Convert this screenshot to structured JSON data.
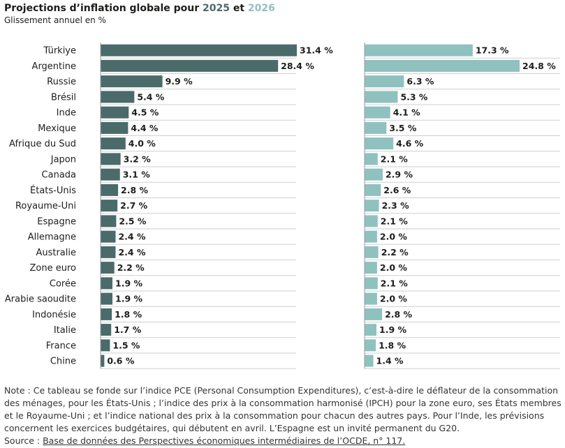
{
  "header": {
    "title_prefix": "Projections d’inflation globale pour ",
    "year1": "2025",
    "title_join": " et ",
    "year2": "2026",
    "subtitle": "Glissement annuel en %"
  },
  "chart_data": {
    "type": "bar",
    "orientation": "horizontal",
    "title": "Projections d’inflation globale pour 2025 et 2026",
    "subtitle": "Glissement annuel en %",
    "categories": [
      "Türkiye",
      "Argentine",
      "Russie",
      "Brésil",
      "Inde",
      "Mexique",
      "Afrique du Sud",
      "Japon",
      "Canada",
      "États-Unis",
      "Royaume-Uni",
      "Espagne",
      "Allemagne",
      "Australie",
      "Zone euro",
      "Corée",
      "Arabie saoudite",
      "Indonésie",
      "Italie",
      "France",
      "Chine"
    ],
    "series": [
      {
        "name": "2025",
        "color": "#4a6b69",
        "values": [
          31.4,
          28.4,
          9.9,
          5.4,
          4.5,
          4.4,
          4.0,
          3.2,
          3.1,
          2.8,
          2.7,
          2.5,
          2.4,
          2.4,
          2.2,
          1.9,
          1.9,
          1.8,
          1.7,
          1.5,
          0.6
        ],
        "labels": [
          "31.4 %",
          "28.4 %",
          "9.9 %",
          "5.4 %",
          "4.5 %",
          "4.4 %",
          "4.0 %",
          "3.2 %",
          "3.1 %",
          "2.8 %",
          "2.7 %",
          "2.5 %",
          "2.4 %",
          "2.4 %",
          "2.2 %",
          "1.9 %",
          "1.9 %",
          "1.8 %",
          "1.7 %",
          "1.5 %",
          "0.6 %"
        ]
      },
      {
        "name": "2026",
        "color": "#8fc1bf",
        "values": [
          17.3,
          24.8,
          6.3,
          5.3,
          4.1,
          3.5,
          4.6,
          2.1,
          2.9,
          2.6,
          2.3,
          2.1,
          2.0,
          2.2,
          2.0,
          2.1,
          2.0,
          2.8,
          1.9,
          1.8,
          1.4
        ],
        "labels": [
          "17.3 %",
          "24.8 %",
          "6.3 %",
          "5.3 %",
          "4.1 %",
          "3.5 %",
          "4.6 %",
          "2.1 %",
          "2.9 %",
          "2.6 %",
          "2.3 %",
          "2.1 %",
          "2.0 %",
          "2.2 %",
          "2.0 %",
          "2.1 %",
          "2.0 %",
          "2.8 %",
          "1.9 %",
          "1.8 %",
          "1.4 %"
        ]
      }
    ],
    "xlim_2025": [
      0,
      31.4
    ],
    "xlim_2026": [
      0,
      24.8
    ],
    "grid": true
  },
  "footer": {
    "note": "Note : Ce tableau se fonde sur l’indice PCE (Personal Consumption Expenditures), c’est-à-dire le déflateur de la consommation des ménages, pour les États-Unis ; l’indice des prix à la consommation harmonisé (IPCH) pour la zone euro, ses États membres et le Royaume-Uni ; et l’indice national des prix à la consommation pour chacun des autres pays. Pour l’Inde, les prévisions concernent les exercices budgétaires, qui débutent en avril. L’Espagne est un invité permanent du G20.",
    "source_prefix": "Source : ",
    "source_link": "Base de données des Perspectives économiques intermédiaires de l’OCDE, n° 117."
  }
}
